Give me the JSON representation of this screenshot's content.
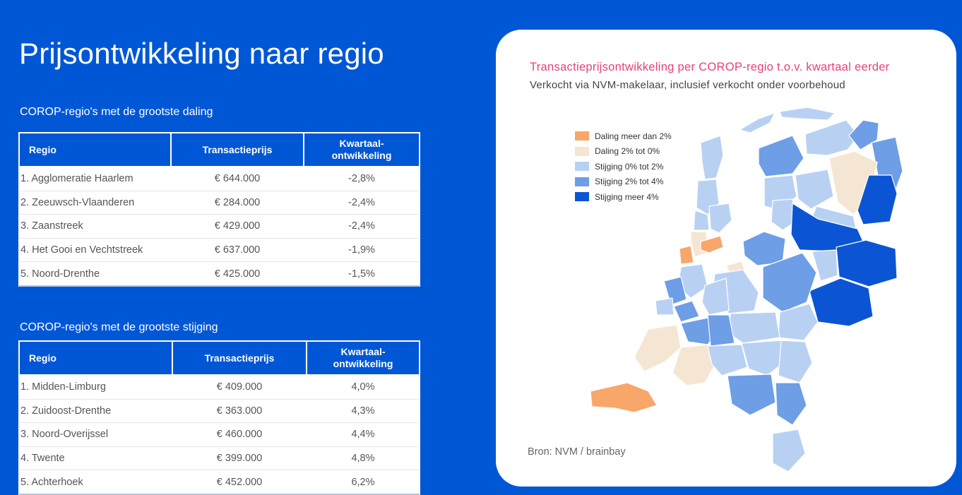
{
  "page": {
    "title": "Prijsontwikkeling naar regio"
  },
  "colors": {
    "background": "#0057d6",
    "daling_meer_2": "#f9a66a",
    "daling_0_2": "#f5e6d3",
    "stijging_0_2": "#b8d1f3",
    "stijging_2_4": "#6d9ee6",
    "stijging_meer_4": "#0b55d4",
    "map_title": "#e8407a"
  },
  "daling": {
    "section_label": "COROP-regio's met de grootste daling",
    "headers": [
      "Regio",
      "Transactieprijs",
      "Kwartaal-\nontwikkeling"
    ],
    "rows": [
      [
        "1. Agglomeratie Haarlem",
        "€ 644.000",
        "-2,8%"
      ],
      [
        "2. Zeeuwsch-Vlaanderen",
        "€ 284.000",
        "-2,4%"
      ],
      [
        "3. Zaanstreek",
        "€ 429.000",
        "-2,4%"
      ],
      [
        "4. Het Gooi en Vechtstreek",
        "€ 637.000",
        "-1,9%"
      ],
      [
        "5. Noord-Drenthe",
        "€ 425.000",
        "-1,5%"
      ]
    ]
  },
  "stijging": {
    "section_label": "COROP-regio's met de grootste stijging",
    "headers": [
      "Regio",
      "Transactieprijs",
      "Kwartaal-\nontwikkeling"
    ],
    "rows": [
      [
        "1. Midden-Limburg",
        "€ 409.000",
        "4,0%"
      ],
      [
        "2. Zuidoost-Drenthe",
        "€ 363.000",
        "4,3%"
      ],
      [
        "3. Noord-Overijssel",
        "€ 460.000",
        "4,4%"
      ],
      [
        "4. Twente",
        "€ 399.000",
        "4,8%"
      ],
      [
        "5. Achterhoek",
        "€ 452.000",
        "6,2%"
      ]
    ]
  },
  "map": {
    "title": "Transactieprijsontwikkeling per COROP-regio t.o.v. kwartaal eerder",
    "subtitle": "Verkocht via NVM-makelaar, inclusief verkocht onder voorbehoud",
    "legend": [
      {
        "label": "Daling meer dan 2%",
        "color": "#f9a66a"
      },
      {
        "label": "Daling 2% tot 0%",
        "color": "#f5e6d3"
      },
      {
        "label": "Stijging 0% tot 2%",
        "color": "#b8d1f3"
      },
      {
        "label": "Stijging 2% tot 4%",
        "color": "#6d9ee6"
      },
      {
        "label": "Stijging meer 4%",
        "color": "#0b55d4"
      }
    ],
    "source": "Bron: NVM / brainbay"
  }
}
